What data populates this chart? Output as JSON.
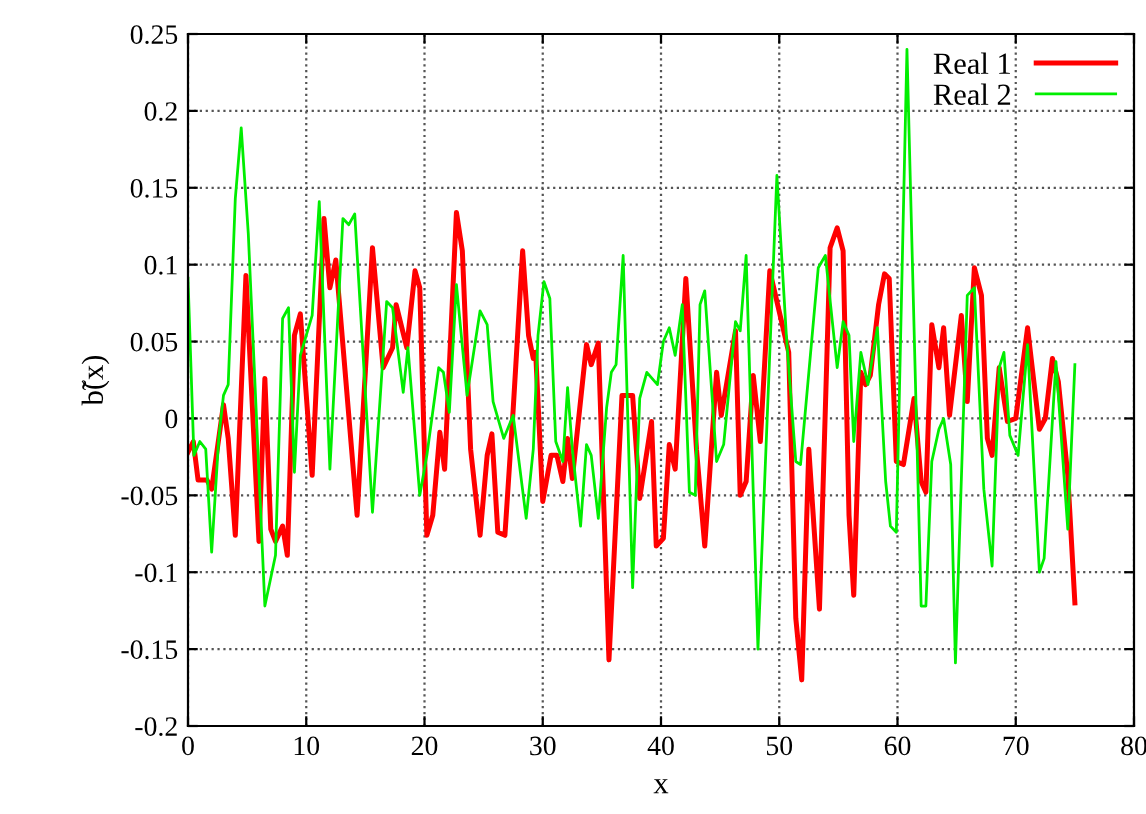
{
  "chart_data": {
    "type": "line",
    "xlabel": "x",
    "ylabel": "b̃(x)",
    "xlim": [
      0,
      80
    ],
    "xticks": [
      0,
      10,
      20,
      30,
      40,
      50,
      60,
      70,
      80
    ],
    "ylim": [
      -0.2,
      0.25
    ],
    "yticks": [
      -0.2,
      -0.15,
      -0.1,
      -0.05,
      0,
      0.05,
      0.1,
      0.15,
      0.2,
      0.25
    ],
    "grid": true,
    "legend": "top right",
    "line_style": "solid",
    "marker": "none",
    "series": [
      {
        "name": "Real 1",
        "color": "#ff0000",
        "x": [
          0,
          0.45,
          0.85,
          1.6,
          2,
          3,
          3.4,
          4,
          4.9,
          6,
          6.5,
          7,
          7.4,
          8,
          8.4,
          9,
          9.5,
          10.5,
          11.5,
          12,
          12.5,
          14.3,
          15.6,
          16.5,
          17.3,
          17.6,
          18.5,
          19.2,
          19.6,
          20.2,
          20.7,
          21.3,
          21.7,
          22.7,
          23.2,
          23.9,
          24.7,
          25.3,
          25.7,
          26.2,
          26.8,
          27.5,
          28.3,
          28.8,
          29.2,
          29.4,
          30,
          30.7,
          31.2,
          31.7,
          32.1,
          32.5,
          33.7,
          34.1,
          34.7,
          35.6,
          36.7,
          37.6,
          38.2,
          39.2,
          39.6,
          40.2,
          40.7,
          41.2,
          42.1,
          43,
          43.7,
          44.7,
          45.1,
          46.3,
          46.7,
          47.2,
          47.8,
          48.4,
          49.2,
          50.8,
          51.4,
          51.9,
          52.5,
          53.4,
          54.3,
          54.9,
          55.4,
          55.9,
          56.3,
          56.9,
          57.3,
          57.7,
          58.4,
          58.9,
          59.3,
          59.9,
          60.5,
          61.4,
          62,
          62.4,
          62.9,
          63.5,
          63.9,
          64.4,
          65.4,
          65.9,
          66.5,
          67.1,
          67.6,
          68,
          68.6,
          69.3,
          70,
          71,
          72,
          72.5,
          73.1,
          73.6,
          74.4,
          75
        ],
        "values": [
          -0.022,
          -0.015,
          -0.04,
          -0.04,
          -0.046,
          0.009,
          -0.013,
          -0.076,
          0.093,
          -0.08,
          0.026,
          -0.072,
          -0.08,
          -0.07,
          -0.089,
          0.054,
          0.068,
          -0.037,
          0.13,
          0.085,
          0.103,
          -0.063,
          0.111,
          0.033,
          0.046,
          0.074,
          0.046,
          0.096,
          0.085,
          -0.076,
          -0.063,
          -0.009,
          -0.033,
          0.134,
          0.109,
          -0.02,
          -0.076,
          -0.024,
          -0.01,
          -0.074,
          -0.076,
          0.006,
          0.109,
          0.054,
          0.039,
          0.043,
          -0.054,
          -0.024,
          -0.024,
          -0.041,
          -0.013,
          -0.039,
          0.048,
          0.035,
          0.049,
          -0.157,
          0.015,
          0.015,
          -0.052,
          -0.002,
          -0.083,
          -0.078,
          -0.017,
          -0.033,
          0.091,
          -0.02,
          -0.083,
          0.03,
          0.002,
          0.057,
          -0.05,
          -0.041,
          0.028,
          -0.015,
          0.096,
          0.043,
          -0.13,
          -0.17,
          -0.02,
          -0.124,
          0.111,
          0.124,
          0.109,
          -0.063,
          -0.115,
          0.03,
          0.022,
          0.028,
          0.074,
          0.094,
          0.091,
          -0.028,
          -0.03,
          0.013,
          -0.041,
          -0.048,
          0.061,
          0.033,
          0.059,
          0.002,
          0.067,
          0.011,
          0.098,
          0.08,
          -0.013,
          -0.024,
          0.033,
          -0.002,
          0,
          0.059,
          -0.007,
          0,
          0.039,
          0.024,
          -0.037,
          -0.12
        ]
      },
      {
        "name": "Real 2",
        "color": "#00ee00",
        "x": [
          0,
          0.5,
          1,
          1.5,
          2,
          2.6,
          3,
          3.4,
          4,
          4.5,
          5.1,
          6.5,
          7.4,
          8,
          8.5,
          9,
          9.5,
          10.5,
          11.1,
          12,
          13.1,
          13.6,
          14.1,
          15.6,
          16.8,
          17.3,
          18.2,
          18.6,
          19.6,
          20.2,
          21.2,
          21.6,
          22.1,
          22.7,
          23.6,
          24.7,
          25.3,
          25.8,
          26.7,
          27.5,
          28.6,
          29.2,
          29.6,
          30.1,
          30.6,
          31.1,
          31.7,
          32.1,
          32.5,
          33.2,
          33.7,
          34.1,
          34.7,
          35.4,
          35.8,
          36.2,
          36.8,
          37.6,
          38.2,
          38.8,
          39.7,
          40.2,
          40.7,
          41.2,
          41.8,
          42.4,
          42.9,
          43.3,
          43.7,
          44.7,
          45.3,
          46.3,
          46.7,
          47.2,
          48.2,
          49.8,
          50.6,
          51.4,
          51.8,
          53.3,
          53.9,
          54.9,
          55.4,
          55.9,
          56.3,
          56.9,
          57.5,
          58.3,
          59,
          59.4,
          59.9,
          60.8,
          62,
          62.4,
          62.9,
          63.5,
          63.9,
          64.5,
          64.9,
          65.9,
          66.5,
          67.3,
          68,
          68.6,
          69,
          69.5,
          70.2,
          71,
          72,
          72.4,
          73.4,
          74.4,
          75
        ],
        "values": [
          0.091,
          -0.024,
          -0.015,
          -0.02,
          -0.087,
          -0.013,
          0.015,
          0.022,
          0.143,
          0.189,
          0.12,
          -0.122,
          -0.089,
          0.065,
          0.072,
          -0.035,
          0.041,
          0.067,
          0.141,
          -0.033,
          0.13,
          0.126,
          0.133,
          -0.061,
          0.076,
          0.072,
          0.017,
          0.046,
          -0.05,
          -0.024,
          0.033,
          0.03,
          0.004,
          0.087,
          0.015,
          0.07,
          0.061,
          0.011,
          -0.013,
          0.002,
          -0.065,
          -0.02,
          0.054,
          0.089,
          0.078,
          -0.015,
          -0.028,
          0.02,
          -0.02,
          -0.07,
          -0.017,
          -0.024,
          -0.065,
          0.007,
          0.03,
          0.035,
          0.106,
          -0.11,
          0.013,
          0.03,
          0.022,
          0.05,
          0.059,
          0.041,
          0.074,
          -0.048,
          -0.05,
          0.074,
          0.083,
          -0.028,
          -0.017,
          0.063,
          0.057,
          0.106,
          -0.15,
          0.158,
          0.054,
          -0.028,
          -0.03,
          0.098,
          0.106,
          0.033,
          0.063,
          0.054,
          -0.015,
          0.043,
          0.022,
          0.059,
          -0.041,
          -0.07,
          -0.074,
          0.24,
          -0.122,
          -0.122,
          -0.028,
          -0.007,
          0,
          -0.03,
          -0.159,
          0.08,
          0.085,
          -0.046,
          -0.096,
          0.033,
          0.043,
          -0.011,
          -0.024,
          0.048,
          -0.1,
          -0.091,
          0.037,
          -0.072,
          0.035
        ]
      }
    ]
  }
}
